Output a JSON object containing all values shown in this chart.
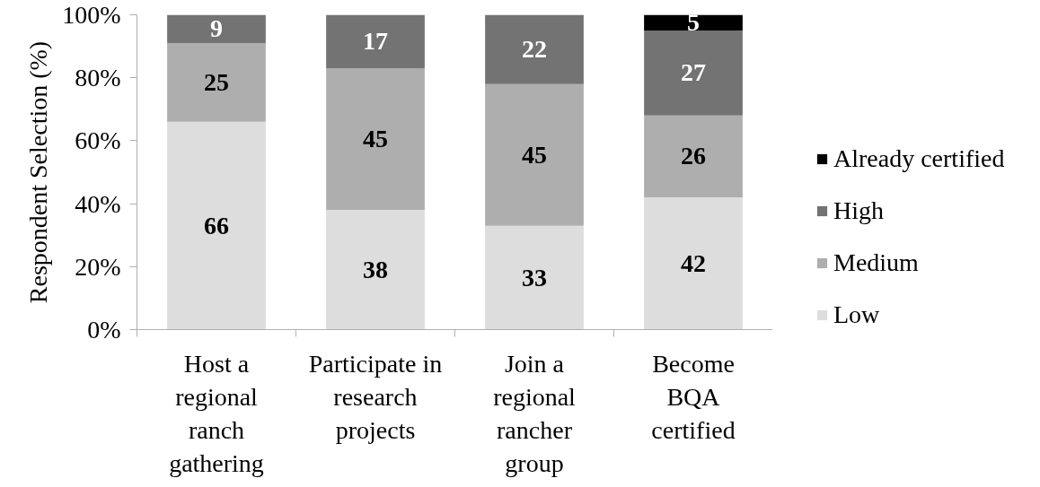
{
  "chart_data": {
    "type": "bar",
    "stacked": true,
    "categories": [
      "Host a\nregional\nranch\ngathering",
      "Participate in\nresearch\nprojects",
      "Join a\nregional\nrancher\ngroup",
      "Become\nBQA\ncertified"
    ],
    "series": [
      {
        "name": "Low",
        "color": "#dddddd",
        "values": [
          66,
          38,
          33,
          42
        ]
      },
      {
        "name": "Medium",
        "color": "#aeaeae",
        "values": [
          25,
          45,
          45,
          26
        ]
      },
      {
        "name": "High",
        "color": "#737373",
        "values": [
          9,
          17,
          22,
          27
        ]
      },
      {
        "name": "Already certified",
        "color": "#000000",
        "values": [
          null,
          null,
          null,
          5
        ]
      }
    ],
    "ylabel": "Respondent Selection (%)",
    "ylim": [
      0,
      100
    ],
    "yticks": [
      {
        "value": 0,
        "label": "0%"
      },
      {
        "value": 20,
        "label": "20%"
      },
      {
        "value": 40,
        "label": "40%"
      },
      {
        "value": 60,
        "label": "60%"
      },
      {
        "value": 80,
        "label": "80%"
      },
      {
        "value": 100,
        "label": "100%"
      }
    ],
    "grid": false,
    "legend": "right",
    "data_labels": true
  }
}
